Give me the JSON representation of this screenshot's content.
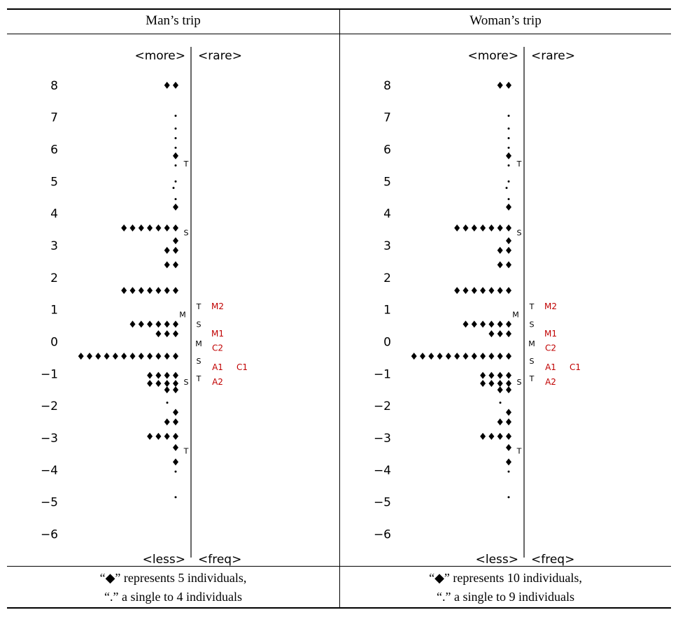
{
  "chart_data": [
    {
      "type": "scatter",
      "header": "Man’s trip",
      "note_line1": "“◆” represents 5 individuals,",
      "note_line2": "“.” a single to 4 individuals",
      "top_left_label": "<more>",
      "top_right_label": "<rare>",
      "bottom_left_label": "<less>",
      "bottom_right_label": "<freq>",
      "ylim": [
        -6.6,
        8.5
      ],
      "y_ticks": [
        8,
        7,
        6,
        5,
        4,
        3,
        2,
        1,
        0,
        -1,
        -2,
        -3,
        -4,
        -5,
        -6
      ],
      "diamond_rows": [
        {
          "y": 8.0,
          "count": 2
        },
        {
          "y": 5.8,
          "count": 1
        },
        {
          "y": 4.2,
          "count": 1
        },
        {
          "y": 3.55,
          "count": 7
        },
        {
          "y": 3.15,
          "count": 1
        },
        {
          "y": 2.85,
          "count": 2
        },
        {
          "y": 2.4,
          "count": 2
        },
        {
          "y": 1.6,
          "count": 7
        },
        {
          "y": 0.55,
          "count": 6
        },
        {
          "y": 0.25,
          "count": 3
        },
        {
          "y": -0.45,
          "count": 12
        },
        {
          "y": -1.05,
          "count": 4
        },
        {
          "y": -1.3,
          "count": 4
        },
        {
          "y": -1.5,
          "count": 2
        },
        {
          "y": -2.2,
          "count": 1
        },
        {
          "y": -2.5,
          "count": 2
        },
        {
          "y": -2.95,
          "count": 4
        },
        {
          "y": -3.3,
          "count": 1
        },
        {
          "y": -3.75,
          "count": 1
        }
      ],
      "dot_rows": [
        {
          "y": 8.0,
          "count": 1
        },
        {
          "y": 7.05,
          "count": 1
        },
        {
          "y": 6.65,
          "count": 1
        },
        {
          "y": 6.35,
          "count": 1
        },
        {
          "y": 6.05,
          "count": 1
        },
        {
          "y": 5.5,
          "count": 1
        },
        {
          "y": 5.0,
          "count": 1
        },
        {
          "y": 4.8,
          "count": 1,
          "offset": 3
        },
        {
          "y": 4.45,
          "count": 1
        },
        {
          "y": -1.9,
          "count": 1,
          "offset": 12
        },
        {
          "y": -4.05,
          "count": 1
        },
        {
          "y": -4.85,
          "count": 1
        }
      ],
      "inner_markers": [
        {
          "y": 5.55,
          "text": "T",
          "side": "right"
        },
        {
          "y": 3.4,
          "text": "S",
          "side": "right"
        },
        {
          "y": 0.85,
          "text": "M",
          "side": "left"
        },
        {
          "y": -1.25,
          "text": "S",
          "side": "right"
        }
      ],
      "outer_markers": [
        {
          "y": 1.1,
          "text": "T"
        },
        {
          "y": 0.55,
          "text": "S"
        },
        {
          "y": -0.05,
          "text": "M"
        },
        {
          "y": -0.6,
          "text": "S"
        },
        {
          "y": -1.15,
          "text": "T"
        },
        {
          "y": -3.4,
          "text": "T",
          "inner": true
        }
      ],
      "red_labels": [
        {
          "y": 1.1,
          "text": "M2",
          "col": 1
        },
        {
          "y": 0.25,
          "text": "M1",
          "col": 1
        },
        {
          "y": -0.2,
          "text": "C2",
          "col": 1
        },
        {
          "y": -0.8,
          "text": "A1",
          "col": 1
        },
        {
          "y": -0.8,
          "text": "C1",
          "col": 2
        },
        {
          "y": -1.25,
          "text": "A2",
          "col": 1
        }
      ]
    },
    {
      "type": "scatter",
      "header": "Woman’s trip",
      "note_line1": "“◆” represents 10 individuals,",
      "note_line2": "“.” a single to 9 individuals",
      "top_left_label": "<more>",
      "top_right_label": "<rare>",
      "bottom_left_label": "<less>",
      "bottom_right_label": "<freq>",
      "ylim": [
        -6.6,
        8.5
      ],
      "y_ticks": [
        8,
        7,
        6,
        5,
        4,
        3,
        2,
        1,
        0,
        -1,
        -2,
        -3,
        -4,
        -5,
        -6
      ],
      "diamond_rows": [
        {
          "y": 8.0,
          "count": 2
        },
        {
          "y": 5.8,
          "count": 1
        },
        {
          "y": 4.2,
          "count": 1
        },
        {
          "y": 3.55,
          "count": 7
        },
        {
          "y": 3.15,
          "count": 1
        },
        {
          "y": 2.85,
          "count": 2
        },
        {
          "y": 2.4,
          "count": 2
        },
        {
          "y": 1.6,
          "count": 7
        },
        {
          "y": 0.55,
          "count": 6
        },
        {
          "y": 0.25,
          "count": 3
        },
        {
          "y": -0.45,
          "count": 12
        },
        {
          "y": -1.05,
          "count": 4
        },
        {
          "y": -1.3,
          "count": 4
        },
        {
          "y": -1.5,
          "count": 2
        },
        {
          "y": -2.2,
          "count": 1
        },
        {
          "y": -2.5,
          "count": 2
        },
        {
          "y": -2.95,
          "count": 4
        },
        {
          "y": -3.3,
          "count": 1
        },
        {
          "y": -3.75,
          "count": 1
        }
      ],
      "dot_rows": [
        {
          "y": 8.0,
          "count": 1
        },
        {
          "y": 7.05,
          "count": 1
        },
        {
          "y": 6.65,
          "count": 1
        },
        {
          "y": 6.35,
          "count": 1
        },
        {
          "y": 6.05,
          "count": 1
        },
        {
          "y": 5.5,
          "count": 1
        },
        {
          "y": 5.0,
          "count": 1
        },
        {
          "y": 4.8,
          "count": 1,
          "offset": 3
        },
        {
          "y": 4.45,
          "count": 1
        },
        {
          "y": -1.9,
          "count": 1,
          "offset": 12
        },
        {
          "y": -4.05,
          "count": 1
        },
        {
          "y": -4.85,
          "count": 1
        }
      ],
      "inner_markers": [
        {
          "y": 5.55,
          "text": "T",
          "side": "right"
        },
        {
          "y": 3.4,
          "text": "S",
          "side": "right"
        },
        {
          "y": 0.85,
          "text": "M",
          "side": "left"
        },
        {
          "y": -1.25,
          "text": "S",
          "side": "right"
        }
      ],
      "outer_markers": [
        {
          "y": 1.1,
          "text": "T"
        },
        {
          "y": 0.55,
          "text": "S"
        },
        {
          "y": -0.05,
          "text": "M"
        },
        {
          "y": -0.6,
          "text": "S"
        },
        {
          "y": -1.15,
          "text": "T"
        },
        {
          "y": -3.4,
          "text": "T",
          "inner": true
        }
      ],
      "red_labels": [
        {
          "y": 1.1,
          "text": "M2",
          "col": 1
        },
        {
          "y": 0.25,
          "text": "M1",
          "col": 1
        },
        {
          "y": -0.2,
          "text": "C2",
          "col": 1
        },
        {
          "y": -0.8,
          "text": "A1",
          "col": 1
        },
        {
          "y": -0.8,
          "text": "C1",
          "col": 2
        },
        {
          "y": -1.25,
          "text": "A2",
          "col": 1
        }
      ]
    }
  ]
}
